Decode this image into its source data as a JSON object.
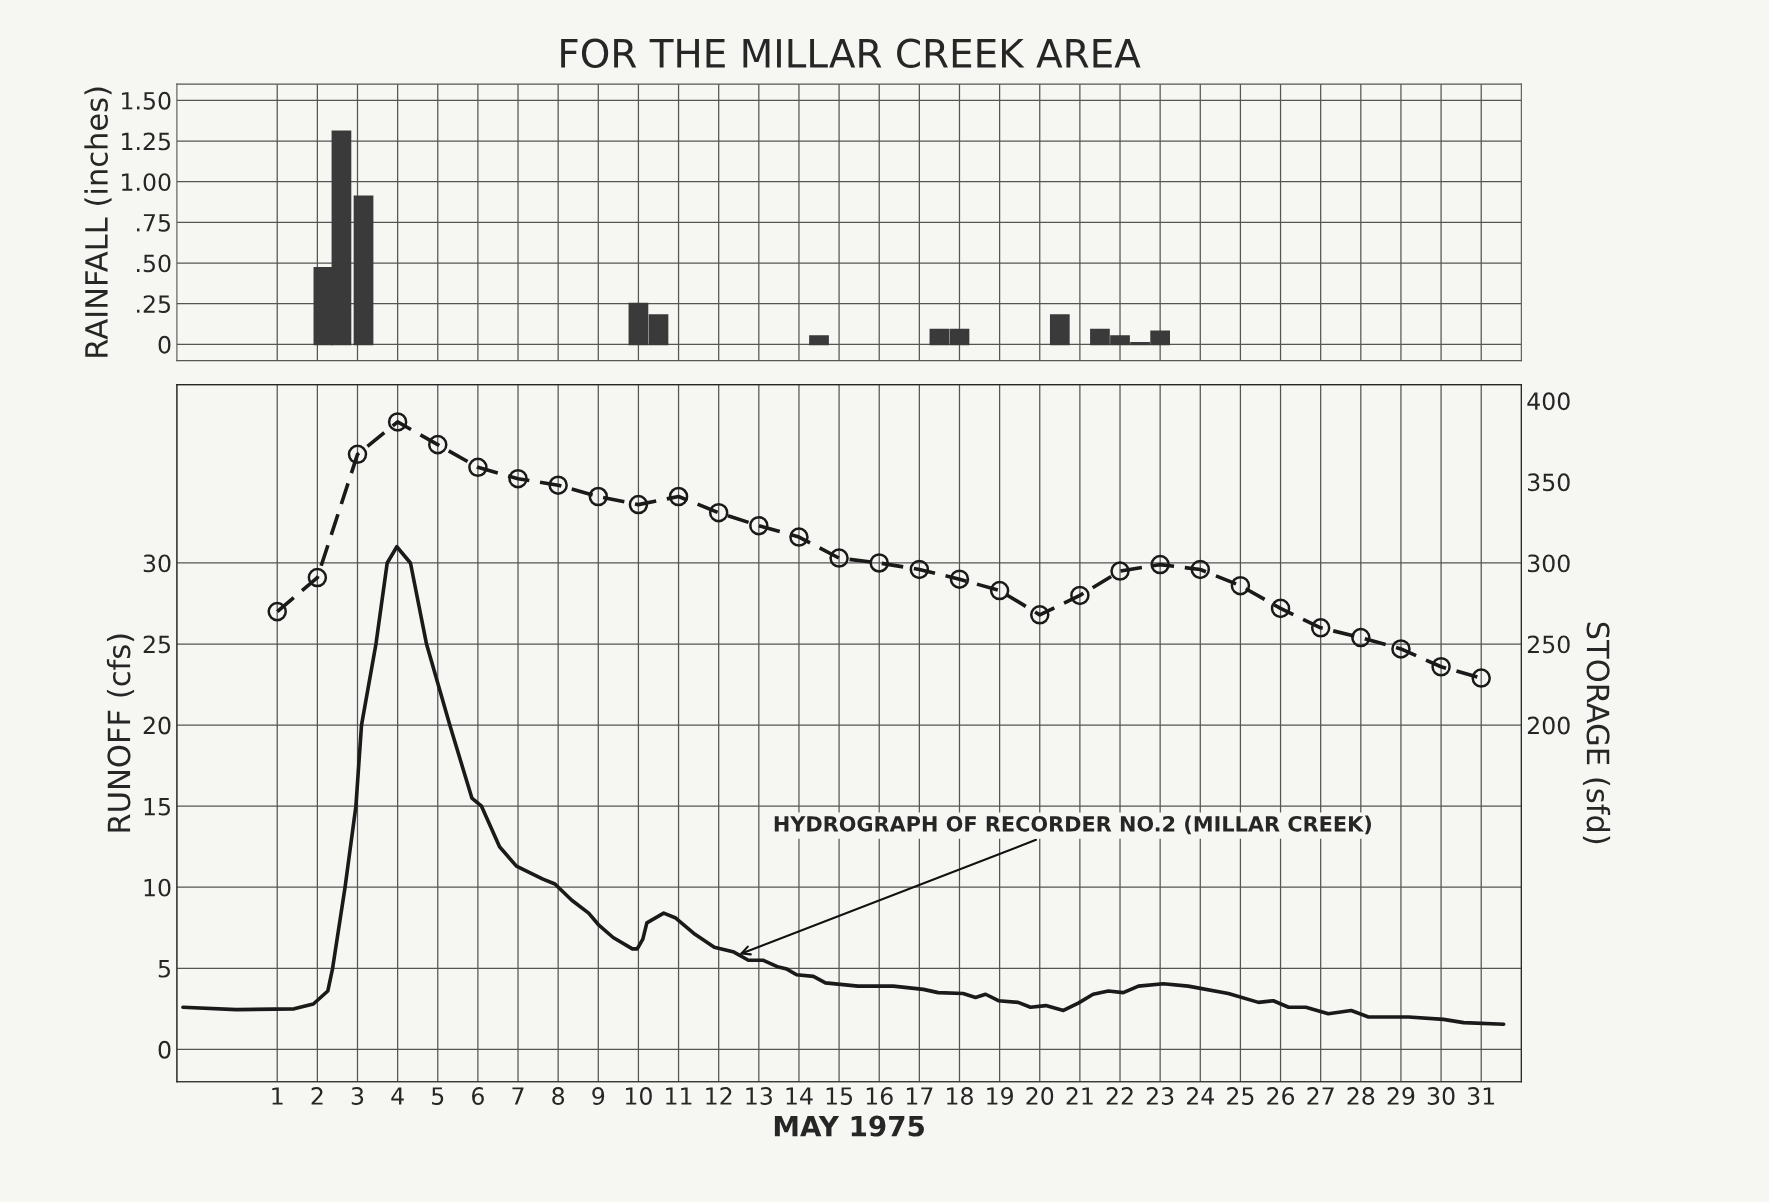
{
  "chart_data": [
    {
      "type": "bar",
      "title": "FOR THE MILLAR CREEK AREA",
      "ylabel": "RAINFALL (inches)",
      "x": [
        2.15,
        2.6,
        3.15,
        10.0,
        10.5,
        14.5,
        17.5,
        18.0,
        20.5,
        21.5,
        22.0,
        22.5,
        23.0
      ],
      "values": [
        0.47,
        1.31,
        0.91,
        0.25,
        0.18,
        0.05,
        0.09,
        0.09,
        0.18,
        0.09,
        0.05,
        0.01,
        0.08
      ],
      "color": "#3a3a3a",
      "xlim": [
        -1.5,
        32
      ],
      "xticks": [
        1,
        2,
        3,
        4,
        5,
        6,
        7,
        8,
        9,
        10,
        11,
        12,
        13,
        14,
        15,
        16,
        17,
        18,
        19,
        20,
        21,
        22,
        23,
        24,
        25,
        26,
        27,
        28,
        29,
        30,
        31
      ],
      "ylim": [
        -0.1,
        1.6
      ],
      "yticks": [
        0,
        {
          "value": 0.25,
          "label": ".25"
        },
        {
          "value": 0.5,
          "label": ".50"
        },
        {
          "value": 0.75,
          "label": ".75"
        },
        {
          "value": 1.0,
          "label": "1.00"
        },
        {
          "value": 1.25,
          "label": "1.25"
        },
        {
          "value": 1.5,
          "label": "1.50"
        }
      ],
      "tick_labels": "y",
      "grid": true
    },
    {
      "type": "line",
      "xlabel": "MAY 1975",
      "ylabel": "RUNOFF (cfs)",
      "y2label": "STORAGE (sfd)",
      "series": [
        {
          "color": "#1a1a1a",
          "line_style": "solid",
          "marker": "none",
          "x": [
            -1.35,
            -0.02,
            1.42,
            1.9,
            2.26,
            2.38,
            2.69,
            2.96,
            3.1,
            3.46,
            3.74,
            3.98,
            4.32,
            4.72,
            5.3,
            5.85,
            6.09,
            6.54,
            6.96,
            7.62,
            7.92,
            8.34,
            8.76,
            9.0,
            9.37,
            9.85,
            9.97,
            10.11,
            10.21,
            10.63,
            10.93,
            11.41,
            11.89,
            12.38,
            12.74,
            13.1,
            13.46,
            13.7,
            13.94,
            14.36,
            14.66,
            15.47,
            16.35,
            17.1,
            17.47,
            18.09,
            18.4,
            18.65,
            18.97,
            19.46,
            19.77,
            20.15,
            20.59,
            20.96,
            21.33,
            21.71,
            22.08,
            22.46,
            23.08,
            23.7,
            24.7,
            25.45,
            25.82,
            26.2,
            26.63,
            27.19,
            27.76,
            28.19,
            29.19,
            30.06,
            30.56,
            31.56
          ],
          "values": [
            2.6,
            2.45,
            2.5,
            2.8,
            3.6,
            5.0,
            10.0,
            15.0,
            20.0,
            25.0,
            30.0,
            31.0,
            30.0,
            25.0,
            20.0,
            15.5,
            15.0,
            12.5,
            11.3,
            10.5,
            10.2,
            9.2,
            8.4,
            7.7,
            6.9,
            6.2,
            6.2,
            6.8,
            7.8,
            8.4,
            8.1,
            7.1,
            6.3,
            6.0,
            5.5,
            5.5,
            5.1,
            4.95,
            4.6,
            4.5,
            4.1,
            3.9,
            3.9,
            3.7,
            3.5,
            3.45,
            3.2,
            3.4,
            3.0,
            2.9,
            2.6,
            2.7,
            2.4,
            2.85,
            3.4,
            3.6,
            3.5,
            3.9,
            4.05,
            3.9,
            3.45,
            2.9,
            3.0,
            2.6,
            2.6,
            2.2,
            2.4,
            2.0,
            2.0,
            1.85,
            1.65,
            1.55
          ]
        },
        {
          "color": "#1a1a1a",
          "axis": "y2",
          "line_style": "dashed",
          "marker": "circle",
          "x": [
            1,
            2,
            3,
            4,
            5,
            6,
            7,
            8,
            9,
            10,
            11,
            12,
            13,
            14,
            15,
            16,
            17,
            18,
            19,
            20,
            21,
            22,
            23,
            24,
            25,
            26,
            27,
            28,
            29,
            30,
            31
          ],
          "values": [
            270,
            291,
            367,
            387,
            373,
            359,
            352,
            348,
            341,
            336,
            341,
            331,
            323,
            316,
            303,
            300,
            296,
            290,
            283,
            268,
            280,
            295,
            299,
            296,
            286,
            272,
            260,
            254,
            247,
            236,
            229
          ]
        }
      ],
      "annotations": [
        {
          "text": "HYDROGRAPH OF RECORDER NO.2 (MILLAR CREEK)",
          "x": 12.45,
          "y": 5.8
        }
      ],
      "xlim": [
        -1.5,
        32
      ],
      "xticks": [
        1,
        2,
        3,
        4,
        5,
        6,
        7,
        8,
        9,
        10,
        11,
        12,
        13,
        14,
        15,
        16,
        17,
        18,
        19,
        20,
        21,
        22,
        23,
        24,
        25,
        26,
        27,
        28,
        29,
        30,
        31
      ],
      "ylim": [
        -2,
        41
      ],
      "yticks": [
        0,
        5,
        10,
        15,
        20,
        25,
        30
      ],
      "y2lim": [
        -20,
        410
      ],
      "y2ticks": [
        200,
        250,
        300,
        350,
        400
      ],
      "grid": true
    }
  ]
}
